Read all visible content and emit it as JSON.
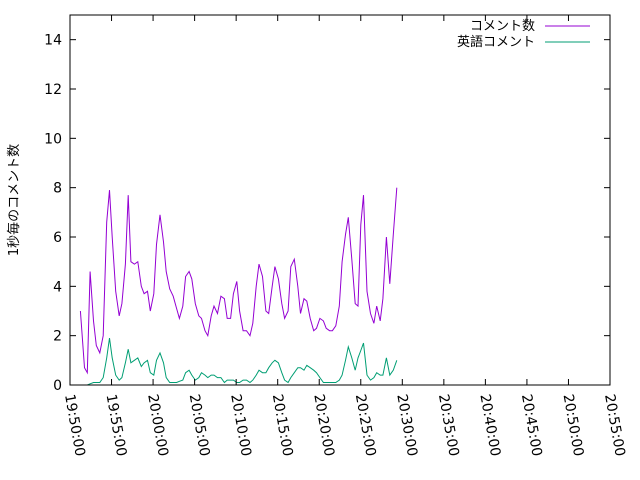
{
  "chart_data": {
    "type": "line",
    "title": "",
    "xlabel": "",
    "ylabel": "1秒毎のコメント数",
    "xlim": [
      "19:50:00",
      "20:55:00"
    ],
    "ylim": [
      0,
      15
    ],
    "x_ticks": [
      "19:50:00",
      "19:55:00",
      "20:00:00",
      "20:05:00",
      "20:10:00",
      "20:15:00",
      "20:20:00",
      "20:25:00",
      "20:30:00",
      "20:35:00",
      "20:40:00",
      "20:45:00",
      "20:50:00",
      "20:55:00"
    ],
    "y_ticks": [
      "0",
      "2",
      "4",
      "6",
      "8",
      "10",
      "12",
      "14"
    ],
    "grid": false,
    "legend_position": "top-right",
    "series": [
      {
        "name": "コメント数",
        "color": "#9400d3",
        "points": [
          [
            "19:51:15",
            3.0
          ],
          [
            "19:51:45",
            0.7
          ],
          [
            "19:52:05",
            0.5
          ],
          [
            "19:52:25",
            4.6
          ],
          [
            "19:52:50",
            2.6
          ],
          [
            "19:53:10",
            1.6
          ],
          [
            "19:53:35",
            1.3
          ],
          [
            "19:54:00",
            2.0
          ],
          [
            "19:54:25",
            6.6
          ],
          [
            "19:54:45",
            7.9
          ],
          [
            "19:55:05",
            6.0
          ],
          [
            "19:55:30",
            3.8
          ],
          [
            "19:55:55",
            2.8
          ],
          [
            "19:56:15",
            3.3
          ],
          [
            "19:56:40",
            4.9
          ],
          [
            "19:57:00",
            7.7
          ],
          [
            "19:57:20",
            5.0
          ],
          [
            "19:57:45",
            4.9
          ],
          [
            "19:58:10",
            5.0
          ],
          [
            "19:58:35",
            4.0
          ],
          [
            "19:58:55",
            3.7
          ],
          [
            "19:59:20",
            3.8
          ],
          [
            "19:59:40",
            3.0
          ],
          [
            "20:00:05",
            3.7
          ],
          [
            "20:00:25",
            5.7
          ],
          [
            "20:00:50",
            6.9
          ],
          [
            "20:01:15",
            5.8
          ],
          [
            "20:01:35",
            4.6
          ],
          [
            "20:02:00",
            3.9
          ],
          [
            "20:02:25",
            3.6
          ],
          [
            "20:02:50",
            3.1
          ],
          [
            "20:03:10",
            2.7
          ],
          [
            "20:03:35",
            3.2
          ],
          [
            "20:03:55",
            4.4
          ],
          [
            "20:04:20",
            4.6
          ],
          [
            "20:04:40",
            4.3
          ],
          [
            "20:05:05",
            3.3
          ],
          [
            "20:05:30",
            2.8
          ],
          [
            "20:05:50",
            2.7
          ],
          [
            "20:06:15",
            2.2
          ],
          [
            "20:06:35",
            2.0
          ],
          [
            "20:07:00",
            2.8
          ],
          [
            "20:07:20",
            3.2
          ],
          [
            "20:07:45",
            2.9
          ],
          [
            "20:08:10",
            3.6
          ],
          [
            "20:08:35",
            3.5
          ],
          [
            "20:08:55",
            2.7
          ],
          [
            "20:09:20",
            2.7
          ],
          [
            "20:09:40",
            3.7
          ],
          [
            "20:10:05",
            4.2
          ],
          [
            "20:10:25",
            3.0
          ],
          [
            "20:10:50",
            2.2
          ],
          [
            "20:11:15",
            2.2
          ],
          [
            "20:11:40",
            2.0
          ],
          [
            "20:12:00",
            2.5
          ],
          [
            "20:12:25",
            4.0
          ],
          [
            "20:12:45",
            4.9
          ],
          [
            "20:13:10",
            4.4
          ],
          [
            "20:13:35",
            3.0
          ],
          [
            "20:13:55",
            2.9
          ],
          [
            "20:14:20",
            4.0
          ],
          [
            "20:14:40",
            4.8
          ],
          [
            "20:15:05",
            4.3
          ],
          [
            "20:15:30",
            3.3
          ],
          [
            "20:15:50",
            2.7
          ],
          [
            "20:16:15",
            3.0
          ],
          [
            "20:16:35",
            4.8
          ],
          [
            "20:17:00",
            5.1
          ],
          [
            "20:17:25",
            4.0
          ],
          [
            "20:17:45",
            2.9
          ],
          [
            "20:18:10",
            3.5
          ],
          [
            "20:18:30",
            3.4
          ],
          [
            "20:18:55",
            2.7
          ],
          [
            "20:19:20",
            2.2
          ],
          [
            "20:19:40",
            2.3
          ],
          [
            "20:20:05",
            2.7
          ],
          [
            "20:20:30",
            2.6
          ],
          [
            "20:20:50",
            2.3
          ],
          [
            "20:21:15",
            2.2
          ],
          [
            "20:21:35",
            2.2
          ],
          [
            "20:22:00",
            2.4
          ],
          [
            "20:22:25",
            3.2
          ],
          [
            "20:22:45",
            5.0
          ],
          [
            "20:23:10",
            6.1
          ],
          [
            "20:23:30",
            6.8
          ],
          [
            "20:23:55",
            5.1
          ],
          [
            "20:24:20",
            3.3
          ],
          [
            "20:24:40",
            3.2
          ],
          [
            "20:25:00",
            6.5
          ],
          [
            "20:25:20",
            7.7
          ],
          [
            "20:25:45",
            3.8
          ],
          [
            "20:26:10",
            2.9
          ],
          [
            "20:26:35",
            2.5
          ],
          [
            "20:26:55",
            3.2
          ],
          [
            "20:27:20",
            2.6
          ],
          [
            "20:27:40",
            3.5
          ],
          [
            "20:28:05",
            6.0
          ],
          [
            "20:28:30",
            4.1
          ],
          [
            "20:28:55",
            6.1
          ],
          [
            "20:29:20",
            8.0
          ]
        ]
      },
      {
        "name": "英語コメント",
        "color": "#009e73",
        "points": [
          [
            "19:51:15",
            0.0
          ],
          [
            "19:51:45",
            0.0
          ],
          [
            "19:52:05",
            0.0
          ],
          [
            "19:52:25",
            0.05
          ],
          [
            "19:52:50",
            0.1
          ],
          [
            "19:53:10",
            0.1
          ],
          [
            "19:53:35",
            0.1
          ],
          [
            "19:54:00",
            0.3
          ],
          [
            "19:54:25",
            1.1
          ],
          [
            "19:54:45",
            1.9
          ],
          [
            "19:55:05",
            1.1
          ],
          [
            "19:55:30",
            0.4
          ],
          [
            "19:55:55",
            0.2
          ],
          [
            "19:56:15",
            0.3
          ],
          [
            "19:56:40",
            0.9
          ],
          [
            "19:57:00",
            1.45
          ],
          [
            "19:57:20",
            0.9
          ],
          [
            "19:57:45",
            1.0
          ],
          [
            "19:58:10",
            1.1
          ],
          [
            "19:58:35",
            0.75
          ],
          [
            "19:58:55",
            0.9
          ],
          [
            "19:59:20",
            1.0
          ],
          [
            "19:59:40",
            0.5
          ],
          [
            "20:00:05",
            0.4
          ],
          [
            "20:00:25",
            1.0
          ],
          [
            "20:00:50",
            1.3
          ],
          [
            "20:01:15",
            0.9
          ],
          [
            "20:01:35",
            0.3
          ],
          [
            "20:02:00",
            0.1
          ],
          [
            "20:02:25",
            0.1
          ],
          [
            "20:02:50",
            0.1
          ],
          [
            "20:03:10",
            0.15
          ],
          [
            "20:03:35",
            0.2
          ],
          [
            "20:03:55",
            0.5
          ],
          [
            "20:04:20",
            0.6
          ],
          [
            "20:04:40",
            0.4
          ],
          [
            "20:05:05",
            0.2
          ],
          [
            "20:05:30",
            0.3
          ],
          [
            "20:05:50",
            0.5
          ],
          [
            "20:06:15",
            0.4
          ],
          [
            "20:06:35",
            0.3
          ],
          [
            "20:07:00",
            0.4
          ],
          [
            "20:07:20",
            0.4
          ],
          [
            "20:07:45",
            0.3
          ],
          [
            "20:08:10",
            0.3
          ],
          [
            "20:08:35",
            0.1
          ],
          [
            "20:08:55",
            0.2
          ],
          [
            "20:09:20",
            0.2
          ],
          [
            "20:09:40",
            0.2
          ],
          [
            "20:10:05",
            0.1
          ],
          [
            "20:10:25",
            0.1
          ],
          [
            "20:10:50",
            0.2
          ],
          [
            "20:11:15",
            0.2
          ],
          [
            "20:11:40",
            0.1
          ],
          [
            "20:12:00",
            0.2
          ],
          [
            "20:12:25",
            0.4
          ],
          [
            "20:12:45",
            0.6
          ],
          [
            "20:13:10",
            0.5
          ],
          [
            "20:13:35",
            0.5
          ],
          [
            "20:13:55",
            0.7
          ],
          [
            "20:14:20",
            0.9
          ],
          [
            "20:14:40",
            1.0
          ],
          [
            "20:15:05",
            0.9
          ],
          [
            "20:15:30",
            0.5
          ],
          [
            "20:15:50",
            0.2
          ],
          [
            "20:16:15",
            0.1
          ],
          [
            "20:16:35",
            0.3
          ],
          [
            "20:17:00",
            0.5
          ],
          [
            "20:17:25",
            0.7
          ],
          [
            "20:17:45",
            0.7
          ],
          [
            "20:18:10",
            0.6
          ],
          [
            "20:18:30",
            0.8
          ],
          [
            "20:18:55",
            0.7
          ],
          [
            "20:19:20",
            0.6
          ],
          [
            "20:19:40",
            0.5
          ],
          [
            "20:20:05",
            0.3
          ],
          [
            "20:20:30",
            0.1
          ],
          [
            "20:20:50",
            0.1
          ],
          [
            "20:21:15",
            0.1
          ],
          [
            "20:21:35",
            0.1
          ],
          [
            "20:22:00",
            0.1
          ],
          [
            "20:22:25",
            0.2
          ],
          [
            "20:22:45",
            0.4
          ],
          [
            "20:23:10",
            1.0
          ],
          [
            "20:23:30",
            1.55
          ],
          [
            "20:23:55",
            1.1
          ],
          [
            "20:24:20",
            0.6
          ],
          [
            "20:24:40",
            1.1
          ],
          [
            "20:25:00",
            1.4
          ],
          [
            "20:25:20",
            1.7
          ],
          [
            "20:25:45",
            0.4
          ],
          [
            "20:26:10",
            0.2
          ],
          [
            "20:26:35",
            0.3
          ],
          [
            "20:26:55",
            0.5
          ],
          [
            "20:27:20",
            0.4
          ],
          [
            "20:27:40",
            0.4
          ],
          [
            "20:28:05",
            1.1
          ],
          [
            "20:28:30",
            0.4
          ],
          [
            "20:28:55",
            0.6
          ],
          [
            "20:29:20",
            1.0
          ]
        ]
      }
    ]
  }
}
